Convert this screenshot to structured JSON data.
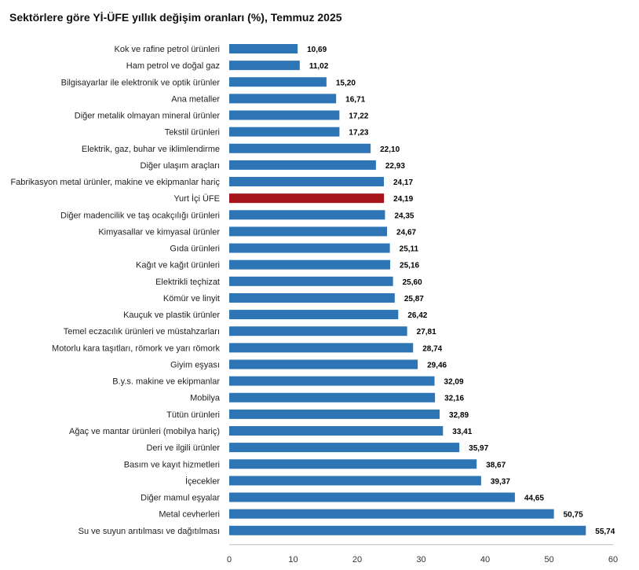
{
  "chart_data": {
    "type": "bar",
    "orientation": "horizontal",
    "title": "Sektörlere göre Yİ-ÜFE yıllık değişim oranları (%), Temmuz 2025",
    "xlabel": "",
    "ylabel": "",
    "xlim": [
      0,
      60
    ],
    "xticks": [
      "0",
      "10",
      "20",
      "30",
      "40",
      "50",
      "60"
    ],
    "grid": false,
    "legend": "none",
    "bar_color": "#2e75b6",
    "highlight_color": "#a6141c",
    "highlight_category": "Yurt İçi ÜFE",
    "categories": [
      "Kok ve rafine petrol ürünleri",
      "Ham petrol ve doğal gaz",
      "Bilgisayarlar ile elektronik ve optik ürünler",
      "Ana metaller",
      "Diğer metalik olmayan mineral ürünler",
      "Tekstil ürünleri",
      "Elektrik, gaz, buhar ve iklimlendirme",
      "Diğer ulaşım araçları",
      "Fabrikasyon metal ürünler, makine ve ekipmanlar hariç",
      "Yurt İçi ÜFE",
      "Diğer madencilik ve taş ocakçılığı ürünleri",
      "Kimyasallar ve kimyasal ürünler",
      "Gıda ürünleri",
      "Kağıt ve kağıt ürünleri",
      "Elektrikli teçhizat",
      "Kömür ve linyit",
      "Kauçuk ve plastik ürünler",
      "Temel eczacılık ürünleri ve müstahzarları",
      "Motorlu kara taşıtları, römork ve yarı römork",
      "Giyim eşyası",
      "B.y.s. makine ve ekipmanlar",
      "Mobilya",
      "Tütün ürünleri",
      "Ağaç ve mantar ürünleri (mobilya hariç)",
      "Deri ve ilgili ürünler",
      "Basım ve kayıt hizmetleri",
      "İçecekler",
      "Diğer mamul eşyalar",
      "Metal cevherleri",
      "Su ve suyun arıtılması ve dağıtılması"
    ],
    "values": [
      10.69,
      11.02,
      15.2,
      16.71,
      17.22,
      17.23,
      22.1,
      22.93,
      24.17,
      24.19,
      24.35,
      24.67,
      25.11,
      25.16,
      25.6,
      25.87,
      26.42,
      27.81,
      28.74,
      29.46,
      32.09,
      32.16,
      32.89,
      33.41,
      35.97,
      38.67,
      39.37,
      44.65,
      50.75,
      55.74
    ],
    "value_labels": [
      "10,69",
      "11,02",
      "15,20",
      "16,71",
      "17,22",
      "17,23",
      "22,10",
      "22,93",
      "24,17",
      "24,19",
      "24,35",
      "24,67",
      "25,11",
      "25,16",
      "25,60",
      "25,87",
      "26,42",
      "27,81",
      "28,74",
      "29,46",
      "32,09",
      "32,16",
      "32,89",
      "33,41",
      "35,97",
      "38,67",
      "39,37",
      "44,65",
      "50,75",
      "55,74"
    ]
  }
}
